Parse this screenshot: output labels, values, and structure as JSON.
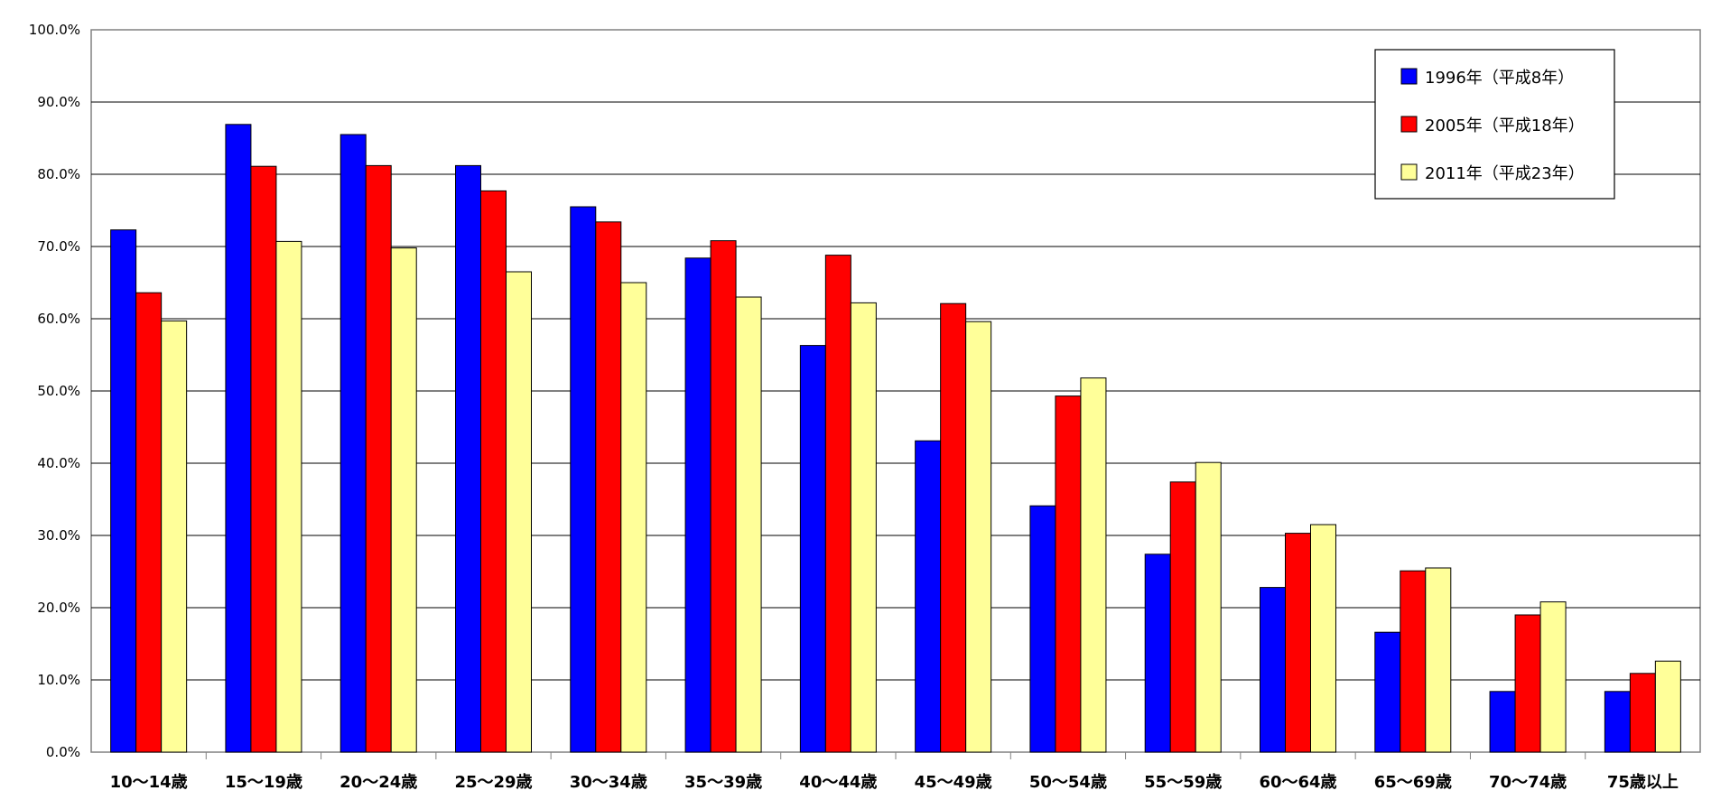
{
  "chart_data": {
    "type": "bar",
    "categories": [
      "10～14歳",
      "15～19歳",
      "20～24歳",
      "25～29歳",
      "30～34歳",
      "35～39歳",
      "40～44歳",
      "45～49歳",
      "50～54歳",
      "55～59歳",
      "60～64歳",
      "65～69歳",
      "70～74歳",
      "75歳以上"
    ],
    "series": [
      {
        "name": "1996年（平成8年）",
        "color": "#0000ff",
        "values": [
          72.3,
          86.9,
          85.5,
          81.2,
          75.5,
          68.4,
          56.3,
          43.1,
          34.1,
          27.4,
          22.8,
          16.6,
          8.4,
          8.4
        ]
      },
      {
        "name": "2005年（平成18年）",
        "color": "#ff0000",
        "values": [
          63.6,
          81.1,
          81.2,
          77.7,
          73.4,
          70.8,
          68.8,
          62.1,
          49.3,
          37.4,
          30.3,
          25.1,
          19.0,
          10.9
        ]
      },
      {
        "name": "2011年（平成23年）",
        "color": "#ffff99",
        "values": [
          59.7,
          70.7,
          69.8,
          66.5,
          65.0,
          63.0,
          62.2,
          59.6,
          51.8,
          40.1,
          31.5,
          25.5,
          20.8,
          12.6
        ]
      }
    ],
    "y_ticks": [
      "0.0%",
      "10.0%",
      "20.0%",
      "30.0%",
      "40.0%",
      "50.0%",
      "60.0%",
      "70.0%",
      "80.0%",
      "90.0%",
      "100.0%"
    ],
    "ylim": [
      0,
      100
    ],
    "title": "",
    "xlabel": "",
    "ylabel": "",
    "grid": true,
    "legend_position": "top-right"
  }
}
